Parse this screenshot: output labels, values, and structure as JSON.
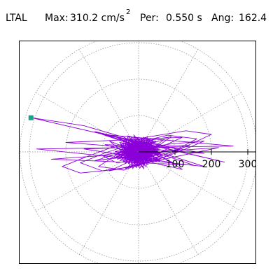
{
  "header": {
    "station": "LTAL",
    "max_label": "Max:",
    "max_value": "310.2 cm/s",
    "max_unit_exponent": "2",
    "per_label": "Per:",
    "per_value": "0.550 s",
    "ang_label": "Ang:",
    "ang_value": "162.4"
  },
  "chart_data": {
    "type": "polar-orbit",
    "title": "",
    "radial_ticks": [
      {
        "value": 100,
        "label": "100"
      },
      {
        "value": 200,
        "label": "200"
      },
      {
        "value": 300,
        "label": "300"
      }
    ],
    "radial_max": 310.2,
    "angular_spokes_deg": [
      0,
      30,
      60,
      90,
      120,
      150,
      180,
      210,
      240,
      270,
      300,
      330
    ],
    "grid": true,
    "peak_marker": {
      "angle_deg": 162.4,
      "radius": 310.2,
      "color": "#17a589"
    },
    "trace_color": "#8b00d8",
    "trace_points": [
      [
        0,
        0
      ],
      [
        8,
        -6
      ],
      [
        -14,
        4
      ],
      [
        22,
        10
      ],
      [
        -30,
        -12
      ],
      [
        18,
        26
      ],
      [
        -6,
        -34
      ],
      [
        40,
        8
      ],
      [
        -48,
        14
      ],
      [
        26,
        -22
      ],
      [
        -12,
        30
      ],
      [
        60,
        -4
      ],
      [
        -70,
        -18
      ],
      [
        44,
        30
      ],
      [
        -20,
        -40
      ],
      [
        86,
        12
      ],
      [
        -92,
        20
      ],
      [
        58,
        -26
      ],
      [
        -30,
        44
      ],
      [
        110,
        6
      ],
      [
        -120,
        -24
      ],
      [
        70,
        34
      ],
      [
        -36,
        -46
      ],
      [
        140,
        18
      ],
      [
        -150,
        8
      ],
      [
        96,
        -30
      ],
      [
        -60,
        40
      ],
      [
        180,
        -4
      ],
      [
        -200,
        26
      ],
      [
        120,
        40
      ],
      [
        -80,
        -52
      ],
      [
        220,
        12
      ],
      [
        -240,
        -20
      ],
      [
        150,
        -36
      ],
      [
        -100,
        48
      ],
      [
        260,
        16
      ],
      [
        -280,
        8
      ],
      [
        180,
        -40
      ],
      [
        -120,
        56
      ],
      [
        236,
        -28
      ],
      [
        -296,
        94
      ],
      [
        -150,
        72
      ],
      [
        -40,
        40
      ],
      [
        60,
        -10
      ],
      [
        120,
        -48
      ],
      [
        40,
        -30
      ],
      [
        -30,
        10
      ],
      [
        -80,
        30
      ],
      [
        -20,
        -20
      ],
      [
        50,
        14
      ],
      [
        90,
        42
      ],
      [
        20,
        30
      ],
      [
        -60,
        -8
      ],
      [
        -110,
        -40
      ],
      [
        -40,
        -50
      ],
      [
        30,
        -24
      ],
      [
        100,
        4
      ],
      [
        160,
        36
      ],
      [
        80,
        46
      ],
      [
        -10,
        24
      ],
      [
        -90,
        -2
      ],
      [
        -160,
        -30
      ],
      [
        -100,
        -52
      ],
      [
        -10,
        -40
      ],
      [
        70,
        -14
      ],
      [
        140,
        20
      ],
      [
        200,
        48
      ],
      [
        130,
        58
      ],
      [
        20,
        40
      ],
      [
        -70,
        14
      ],
      [
        -150,
        -16
      ],
      [
        -210,
        -40
      ],
      [
        -160,
        -58
      ],
      [
        -60,
        -48
      ],
      [
        40,
        -26
      ],
      [
        120,
        4
      ],
      [
        180,
        30
      ],
      [
        90,
        22
      ],
      [
        -20,
        6
      ],
      [
        -100,
        -10
      ],
      [
        -60,
        -30
      ],
      [
        10,
        -20
      ],
      [
        60,
        -4
      ],
      [
        30,
        12
      ],
      [
        -20,
        16
      ],
      [
        -40,
        0
      ],
      [
        -10,
        -16
      ],
      [
        20,
        -10
      ],
      [
        36,
        4
      ],
      [
        10,
        14
      ],
      [
        -16,
        8
      ],
      [
        -24,
        -6
      ],
      [
        -4,
        -14
      ],
      [
        14,
        -6
      ],
      [
        12,
        8
      ],
      [
        -6,
        10
      ],
      [
        -12,
        0
      ],
      [
        0,
        -8
      ],
      [
        6,
        0
      ]
    ]
  }
}
